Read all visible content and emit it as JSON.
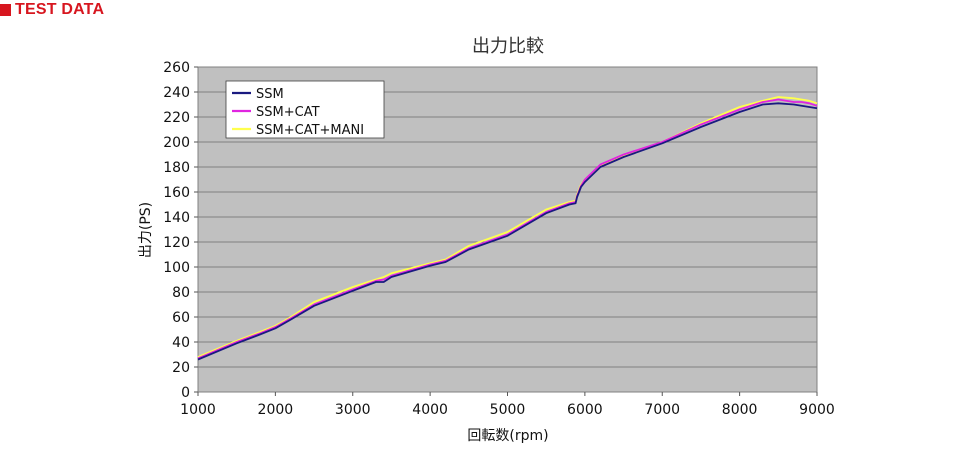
{
  "header": {
    "title": "TEST DATA"
  },
  "colors": {
    "accent": "#d7161f",
    "plot_bg": "#c0c0c0",
    "grid": "#808080"
  },
  "chart_data": {
    "type": "line",
    "title": "出力比較",
    "xlabel": "回転数(rpm)",
    "ylabel": "出力(PS)",
    "xlim": [
      1000,
      9000
    ],
    "ylim": [
      0,
      260
    ],
    "xticks": [
      1000,
      2000,
      3000,
      4000,
      5000,
      6000,
      7000,
      8000,
      9000
    ],
    "yticks": [
      0,
      20,
      40,
      60,
      80,
      100,
      120,
      140,
      160,
      180,
      200,
      220,
      240,
      260
    ],
    "grid": "horizontal",
    "legend_position": "top-left",
    "series": [
      {
        "name": "SSM",
        "color": "#1a1a80",
        "x": [
          1000,
          1500,
          1800,
          2000,
          2200,
          2500,
          3000,
          3300,
          3400,
          3500,
          4000,
          4200,
          4500,
          5000,
          5500,
          5800,
          5880,
          5900,
          5950,
          6000,
          6200,
          6500,
          7000,
          7500,
          8000,
          8300,
          8500,
          8700,
          8800,
          8900,
          9000
        ],
        "y": [
          26,
          39,
          46,
          51,
          58,
          69,
          81,
          88,
          88,
          92,
          101,
          104,
          114,
          125,
          143,
          150,
          151,
          156,
          164,
          168,
          180,
          188,
          199,
          212,
          224,
          230,
          231,
          230,
          229,
          228,
          227
        ]
      },
      {
        "name": "SSM+CAT",
        "color": "#e025e0",
        "x": [
          1000,
          1500,
          1800,
          2000,
          2200,
          2500,
          3000,
          3300,
          3400,
          3500,
          4000,
          4200,
          4500,
          5000,
          5500,
          5800,
          5880,
          5900,
          5950,
          6000,
          6200,
          6500,
          7000,
          7500,
          8000,
          8300,
          8500,
          8700,
          8800,
          8900,
          9000
        ],
        "y": [
          27,
          40,
          47,
          52,
          59,
          70,
          82,
          89,
          90,
          93,
          102,
          105,
          115,
          126,
          144,
          151,
          152,
          157,
          165,
          170,
          182,
          190,
          200,
          214,
          226,
          232,
          234,
          232,
          232,
          231,
          229
        ]
      },
      {
        "name": "SSM+CAT+MANI",
        "color": "#ffff4d",
        "x": [
          1000,
          1500,
          1800,
          2000,
          2200,
          2500,
          3000,
          3300,
          3400,
          3500,
          4000,
          4200,
          4500,
          5000,
          5500,
          5800,
          5880,
          5900,
          5950,
          6000,
          6200,
          6500,
          7000,
          7500,
          8000,
          8300,
          8500,
          8700,
          8800,
          8900,
          9000
        ],
        "y": [
          28,
          41,
          48,
          53,
          60,
          72,
          84,
          90,
          92,
          95,
          103,
          106,
          117,
          128,
          146,
          152,
          153,
          158,
          166,
          170,
          181,
          189,
          200,
          215,
          228,
          233,
          236,
          235,
          234,
          233,
          231
        ]
      }
    ]
  }
}
